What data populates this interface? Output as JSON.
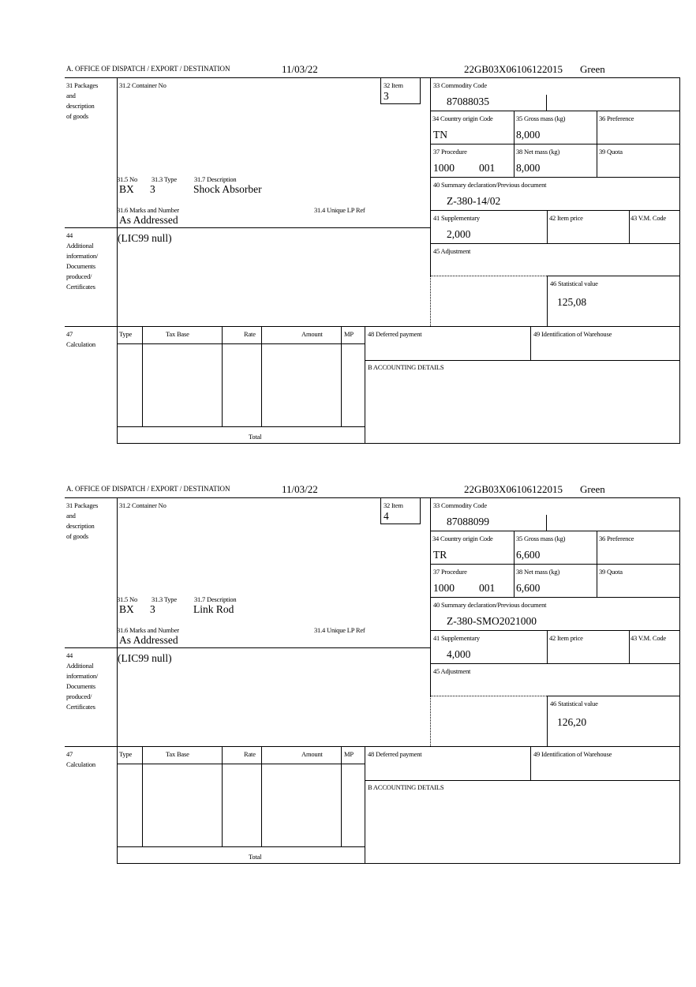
{
  "labels": {
    "office": "A. OFFICE OF DISPATCH / EXPORT / DESTINATION",
    "packages": [
      "31 Packages",
      "and",
      "description",
      "of goods"
    ],
    "container": "31.2 Container No",
    "item": "32 Item",
    "no": "31.5 No",
    "type31": "31.3 Type",
    "description": "31.7 Description",
    "marks": "31.6 Marks and Number",
    "unique_ref": "31.4 Unique LP Ref",
    "additional": [
      "44",
      "Additional",
      "information/",
      "Documents",
      "produced/",
      "Certificates"
    ],
    "commodity": "33 Commodity Code",
    "country": "34 Country origin Code",
    "gross": "35 Gross mass (kg)",
    "preference": "36 Preference",
    "procedure": "37 Procedure",
    "net": "38 Net mass (kg)",
    "quota": "39 Quota",
    "summary": "40 Summary declaration/Previous document",
    "supplementary": "41 Supplementary",
    "item_price": "42 Item price",
    "vm_code": "43 V.M. Code",
    "adjustment": "45 Adjustment",
    "statistical": "46 Statistical value",
    "calculation": [
      "47",
      "Calculation"
    ],
    "calc_cols": [
      "Type",
      "Tax Base",
      "Rate",
      "Amount",
      "MP"
    ],
    "total": "Total",
    "deferred": "48 Deferred payment",
    "warehouse": "49 Identification of Warehouse",
    "accounting": "B ACCOUNTING DETAILS"
  },
  "items": [
    {
      "date": "11/03/22",
      "reference": "22GB03X06106122015",
      "route": "Green",
      "item_no": "3",
      "pkg_kind": "BX",
      "pkg_count": "3",
      "description": "Shock Absorber",
      "marks": "As Addressed",
      "additional_info": "(LIC99 null)",
      "commodity_code": "87088035",
      "country": "TN",
      "gross_mass": "8,000",
      "procedure": "1000",
      "procedure_extra": "001",
      "net_mass": "8,000",
      "previous_doc": "Z-380-14/02",
      "supplementary": "2,000",
      "statistical_value": "125,08"
    },
    {
      "date": "11/03/22",
      "reference": "22GB03X06106122015",
      "route": "Green",
      "item_no": "4",
      "pkg_kind": "BX",
      "pkg_count": "3",
      "description": "Link Rod",
      "marks": "As Addressed",
      "additional_info": "(LIC99 null)",
      "commodity_code": "87088099",
      "country": "TR",
      "gross_mass": "6,600",
      "procedure": "1000",
      "procedure_extra": "001",
      "net_mass": "6,600",
      "previous_doc": "Z-380-SMO2021000",
      "supplementary": "4,000",
      "statistical_value": "126,20"
    }
  ]
}
